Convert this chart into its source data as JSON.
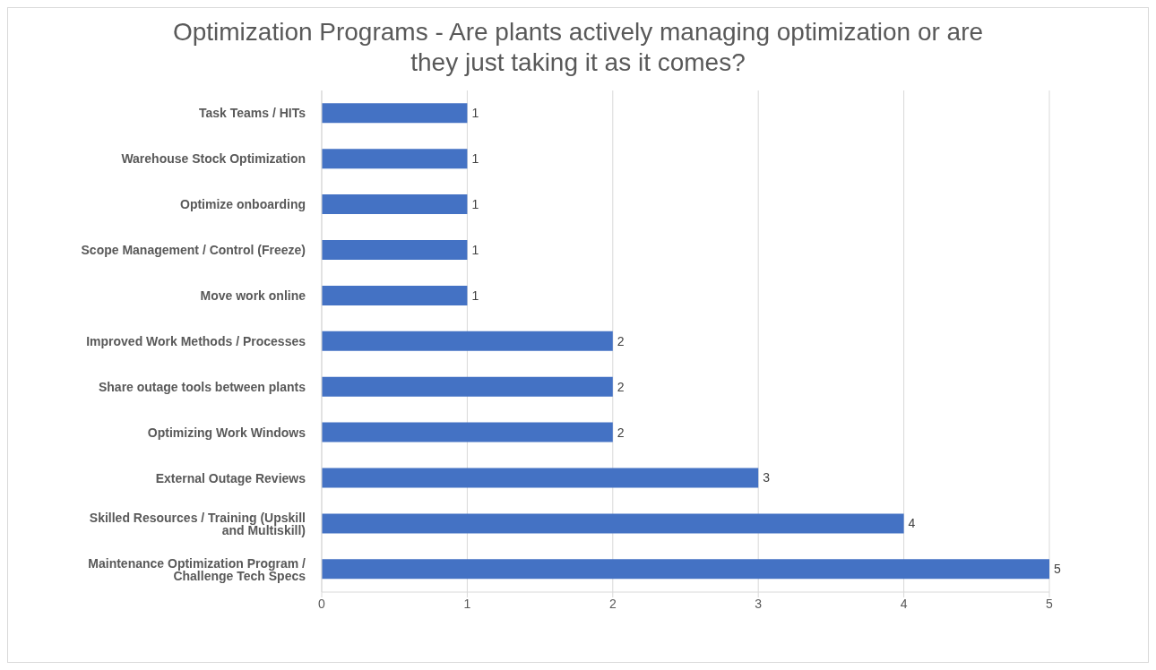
{
  "chart_data": {
    "type": "bar",
    "orientation": "horizontal",
    "title": "Optimization Programs - Are plants actively managing optimization or are they just taking it as it comes?",
    "categories": [
      "Task Teams / HITs",
      "Warehouse Stock Optimization",
      "Optimize onboarding",
      "Scope Management / Control (Freeze)",
      "Move work online",
      "Improved Work Methods / Processes",
      "Share outage tools between plants",
      "Optimizing Work Windows",
      "External Outage  Reviews",
      "Skilled Resources / Training (Upskill and Multiskill)",
      "Maintenance Optimization Program / Challenge Tech Specs"
    ],
    "values": [
      1,
      1,
      1,
      1,
      1,
      2,
      2,
      2,
      3,
      4,
      5
    ],
    "color": "#4472c4",
    "xlim": [
      0,
      5
    ],
    "xticks": [
      0,
      1,
      2,
      3,
      4,
      5
    ],
    "grid": "x",
    "data_labels": true
  }
}
